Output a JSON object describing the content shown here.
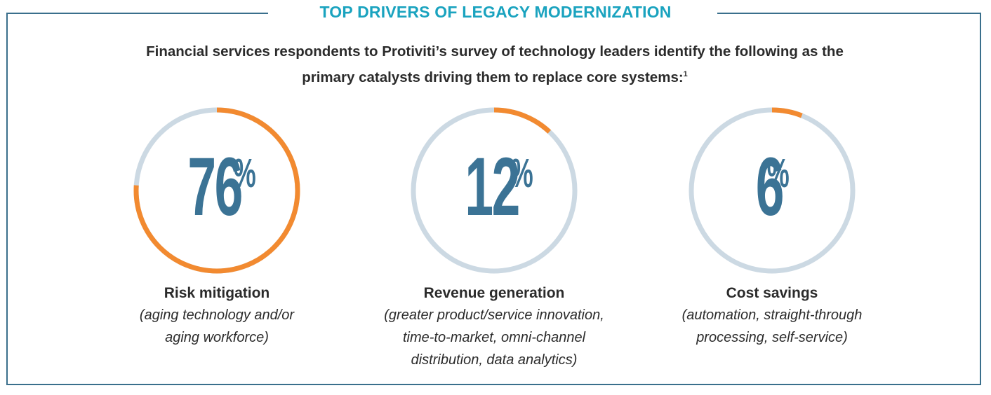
{
  "title": "TOP DRIVERS OF LEGACY MODERNIZATION",
  "intro": {
    "line1": "Financial services respondents to Protiviti’s survey of technology leaders identify the following as the",
    "line2": "primary catalysts driving them to replace core systems:",
    "footnote": "1"
  },
  "colors": {
    "accent": "#f28a30",
    "track": "#ccd9e3",
    "number": "#3b7395",
    "title": "#1aa3bf",
    "frame": "#3a6f8c"
  },
  "chart_data": {
    "type": "donut",
    "series": [
      {
        "name": "Risk mitigation",
        "value": 76
      },
      {
        "name": "Revenue generation",
        "value": 12
      },
      {
        "name": "Cost savings",
        "value": 6
      }
    ]
  },
  "drivers": [
    {
      "value_text": "76",
      "pct": "%",
      "heading": "Risk mitigation",
      "desc": [
        "(aging technology and/or",
        "aging workforce)"
      ]
    },
    {
      "value_text": "12",
      "pct": "%",
      "heading": "Revenue generation",
      "desc": [
        "(greater product/service innovation,",
        "time-to-market, omni-channel",
        "distribution, data analytics)"
      ]
    },
    {
      "value_text": "6",
      "pct": "%",
      "heading": "Cost savings",
      "desc": [
        "(automation, straight-through",
        "processing, self-service)"
      ]
    }
  ]
}
